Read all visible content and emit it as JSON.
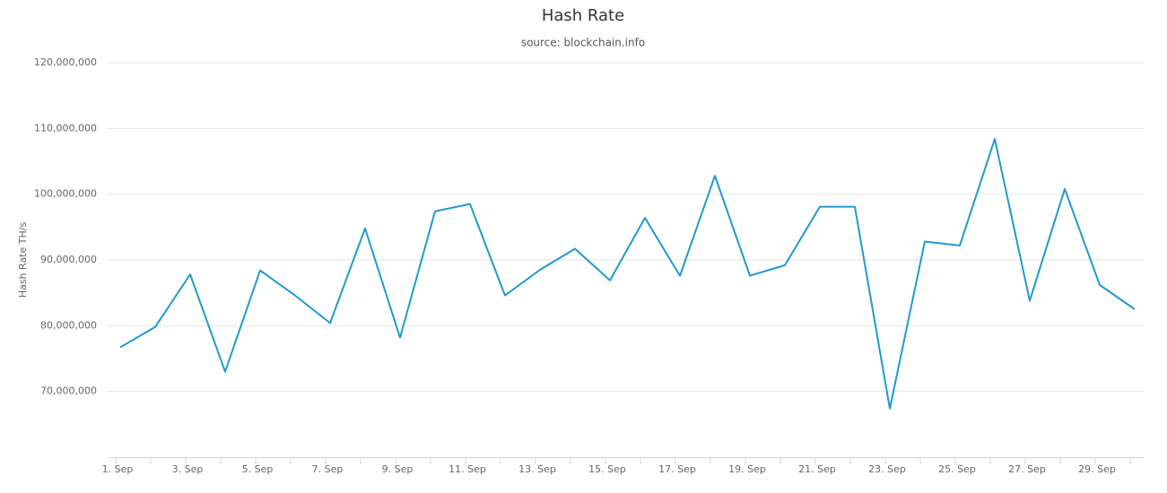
{
  "chart_data": {
    "type": "line",
    "title": "Hash Rate",
    "subtitle": "source: blockchain.info",
    "y_label": "Hash Rate TH/s",
    "categories": [
      "1. Sep",
      null,
      "3. Sep",
      null,
      "5. Sep",
      null,
      "7. Sep",
      null,
      "9. Sep",
      null,
      "11. Sep",
      null,
      "13. Sep",
      null,
      "15. Sep",
      null,
      "17. Sep",
      null,
      "19. Sep",
      null,
      "21. Sep",
      null,
      "23. Sep",
      null,
      "25. Sep",
      null,
      "27. Sep",
      null,
      "29. Sep",
      null
    ],
    "series": [
      {
        "name": "Hash Rate",
        "color": "#1f9ad0",
        "values": [
          76700000,
          79800000,
          87800000,
          73000000,
          88400000,
          84600000,
          80400000,
          94800000,
          78200000,
          97400000,
          98500000,
          84600000,
          88500000,
          91700000,
          86900000,
          96400000,
          87600000,
          102800000,
          87600000,
          89200000,
          98100000,
          98100000,
          67400000,
          92800000,
          92200000,
          108400000,
          83800000,
          100800000,
          86200000,
          82500000
        ]
      }
    ],
    "ylim": [
      60000000,
      120000000
    ],
    "yticks": [
      {
        "value": 70000000,
        "label": "70,000,000"
      },
      {
        "value": 80000000,
        "label": "80,000,000"
      },
      {
        "value": 90000000,
        "label": "90,000,000"
      },
      {
        "value": 100000000,
        "label": "100,000,000"
      },
      {
        "value": 110000000,
        "label": "110,000,000"
      },
      {
        "value": 120000000,
        "label": "120,000,000"
      }
    ],
    "grid": true
  }
}
